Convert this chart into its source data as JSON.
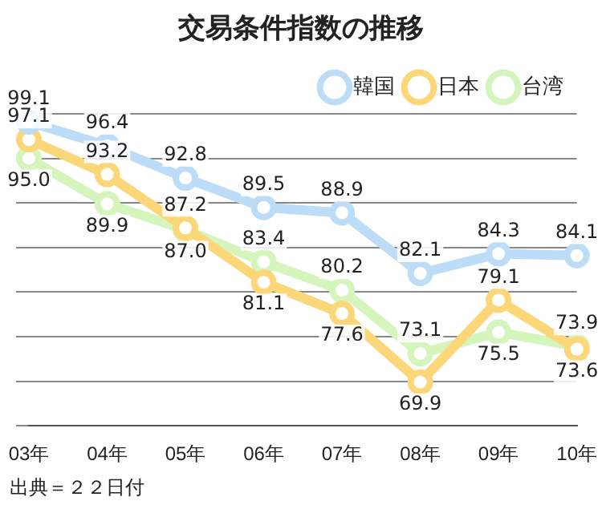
{
  "chart_data": {
    "type": "line",
    "title": "交易条件指数の推移",
    "categories": [
      "03年",
      "04年",
      "05年",
      "06年",
      "07年",
      "08年",
      "09年",
      "10年"
    ],
    "series": [
      {
        "name": "韓国",
        "color": "#bcdcf8",
        "values": [
          99.1,
          96.4,
          92.8,
          89.5,
          88.9,
          82.1,
          84.3,
          84.1
        ],
        "value_labels": [
          "99.1",
          "96.4",
          "92.8",
          "89.5",
          "88.9",
          "82.1",
          "84.3",
          "84.1"
        ]
      },
      {
        "name": "日本",
        "color": "#fcd77a",
        "values": [
          97.1,
          93.2,
          87.2,
          81.1,
          77.6,
          69.9,
          79.1,
          73.6
        ],
        "value_labels": [
          "97.1",
          "93.2",
          "87.2",
          "81.1",
          "77.6",
          "69.9",
          "79.1",
          "73.6"
        ]
      },
      {
        "name": "台湾",
        "color": "#d4f5bc",
        "values": [
          95.0,
          89.9,
          87.0,
          83.4,
          80.2,
          73.1,
          75.5,
          73.9
        ],
        "value_labels": [
          "95.0",
          "89.9",
          "87.0",
          "83.4",
          "80.2",
          "73.1",
          "75.5",
          "73.9"
        ]
      }
    ],
    "grid": "y",
    "legend": "top right",
    "marker": "circle",
    "tick_labels": "x",
    "annotations": [
      "出典＝２２日付"
    ]
  }
}
